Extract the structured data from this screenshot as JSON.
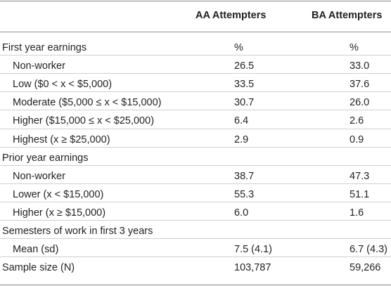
{
  "table": {
    "columns": [
      "AA Attempters",
      "BA Attempters"
    ],
    "rows": [
      {
        "label": "First year earnings",
        "cells": [
          "%",
          "%"
        ],
        "children": [
          {
            "label": "Non-worker",
            "cells": [
              "26.5",
              "33.0"
            ]
          },
          {
            "label": "Low ($0 < x < $5,000)",
            "cells": [
              "33.5",
              "37.6"
            ]
          },
          {
            "label": "Moderate ($5,000 ≤ x < $15,000)",
            "cells": [
              "30.7",
              "26.0"
            ]
          },
          {
            "label": "Higher ($15,000 ≤ x < $25,000)",
            "cells": [
              "6.4",
              "2.6"
            ]
          },
          {
            "label": "Highest (x ≥ $25,000)",
            "cells": [
              "2.9",
              "0.9"
            ]
          }
        ]
      },
      {
        "label": "Prior year earnings",
        "children": [
          {
            "label": "Non-worker",
            "cells": [
              "38.7",
              "47.3"
            ]
          },
          {
            "label": "Lower (x < $15,000)",
            "cells": [
              "55.3",
              "51.1"
            ]
          },
          {
            "label": "Higher (x ≥ $15,000)",
            "cells": [
              "6.0",
              "1.6"
            ]
          }
        ]
      },
      {
        "label": "Semesters of work in first 3 years",
        "children": [
          {
            "label": "Mean (sd)",
            "cells": [
              "7.5 (4.1)",
              "6.7 (4.3)"
            ]
          }
        ]
      },
      {
        "label": "Sample size (N)",
        "cells": [
          "103,787",
          "59,266"
        ]
      }
    ]
  }
}
